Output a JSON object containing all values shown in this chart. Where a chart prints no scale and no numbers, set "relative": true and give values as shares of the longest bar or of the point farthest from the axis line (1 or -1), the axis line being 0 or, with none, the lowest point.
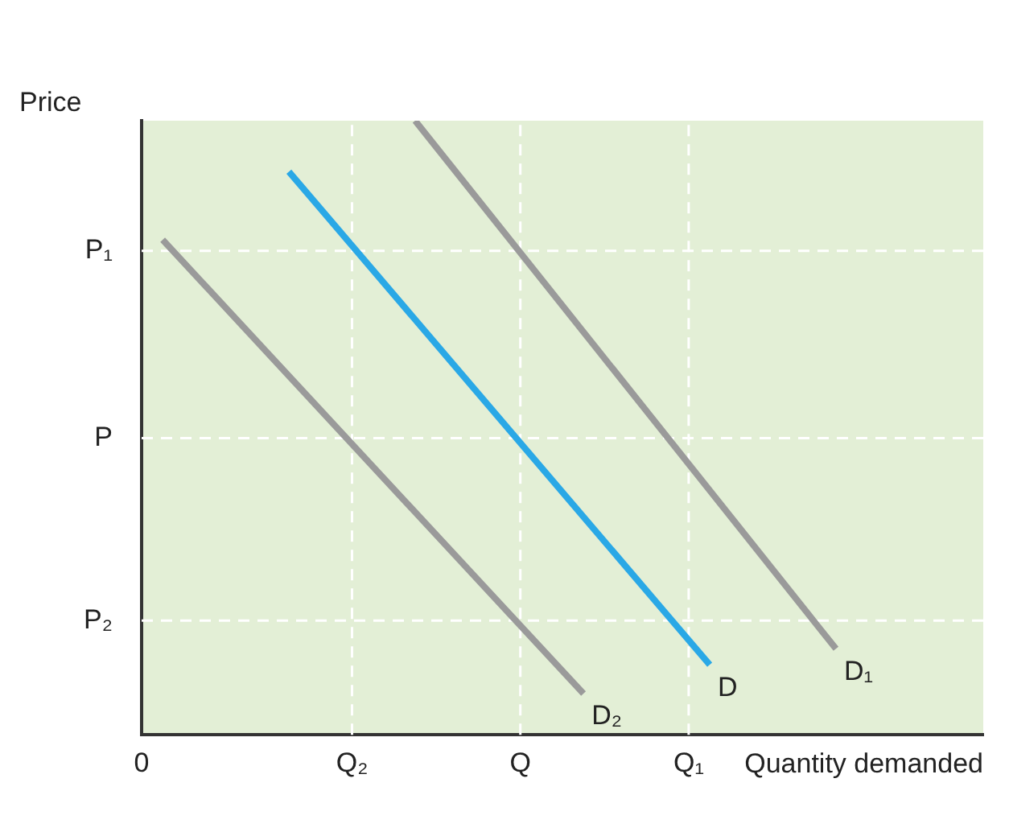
{
  "chart_data": {
    "type": "line",
    "relative": true,
    "xlabel": "Quantity demanded",
    "ylabel": "Price",
    "categories": [
      "0",
      null,
      null,
      null,
      null,
      null,
      null,
      null,
      null,
      null,
      "Q₂",
      null,
      null,
      null,
      null,
      null,
      null,
      null,
      "Q",
      null,
      null,
      null,
      null,
      null,
      null,
      null,
      "Q₁",
      null,
      null,
      null,
      null,
      null,
      null,
      null,
      null,
      null,
      null,
      null,
      null,
      null,
      null
    ],
    "series": [
      {
        "name": "D₂",
        "color": "#9a9a9a",
        "values": [
          null,
          0.806,
          null,
          null,
          null,
          null,
          null,
          null,
          null,
          null,
          null,
          null,
          null,
          null,
          null,
          null,
          null,
          null,
          null,
          null,
          null,
          0.067,
          null,
          null,
          null,
          null,
          null,
          null,
          null,
          null,
          null,
          null,
          null,
          null,
          null,
          null,
          null,
          null,
          null,
          null,
          null
        ]
      },
      {
        "name": "D",
        "color": "#2aa8e6",
        "values": [
          null,
          null,
          null,
          null,
          null,
          null,
          null,
          0.917,
          null,
          null,
          null,
          null,
          null,
          null,
          null,
          null,
          null,
          null,
          null,
          null,
          null,
          null,
          null,
          null,
          null,
          null,
          null,
          0.114,
          null,
          null,
          null,
          null,
          null,
          null,
          null,
          null,
          null,
          null,
          null,
          null,
          null
        ]
      },
      {
        "name": "D₁",
        "color": "#9a9a9a",
        "values": [
          null,
          null,
          null,
          null,
          null,
          null,
          null,
          null,
          null,
          null,
          null,
          null,
          null,
          1.0,
          null,
          null,
          null,
          null,
          null,
          null,
          null,
          null,
          null,
          null,
          null,
          null,
          null,
          null,
          null,
          null,
          null,
          null,
          null,
          0.14,
          null,
          null,
          null,
          null,
          null,
          null,
          null
        ]
      }
    ],
    "ref_lines": [
      {
        "axis": "y",
        "value": 0.788,
        "label": "P₁",
        "color": "#ffffff",
        "line_style": "dashed"
      },
      {
        "axis": "y",
        "value": 0.483,
        "label": "P",
        "color": "#ffffff",
        "line_style": "dashed"
      },
      {
        "axis": "y",
        "value": 0.186,
        "label": "P₂",
        "color": "#ffffff",
        "line_style": "dashed"
      }
    ],
    "grid": "x",
    "legend": false
  }
}
